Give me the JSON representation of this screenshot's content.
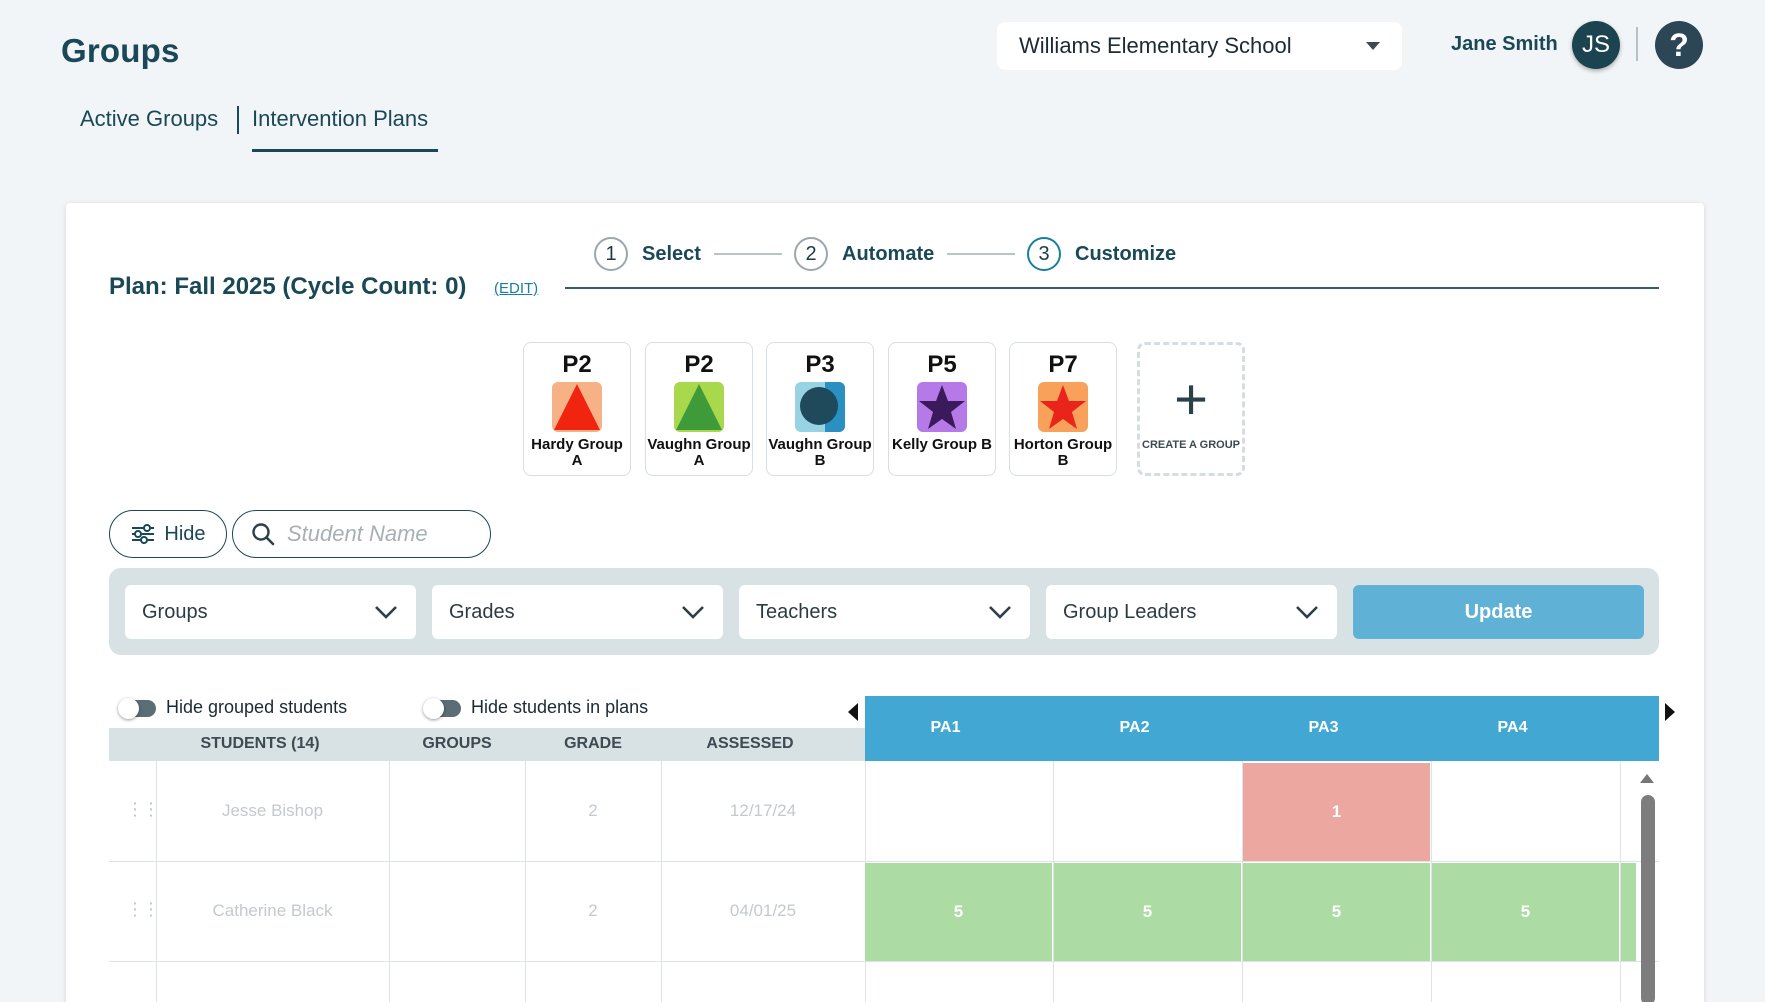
{
  "header": {
    "title": "Groups",
    "school": "Williams Elementary School",
    "user_name": "Jane Smith",
    "user_initials": "JS",
    "help_symbol": "?"
  },
  "tabs": [
    {
      "label": "Active Groups",
      "active": false
    },
    {
      "label": "Intervention Plans",
      "active": true
    }
  ],
  "stepper": [
    {
      "number": "1",
      "label": "Select"
    },
    {
      "number": "2",
      "label": "Automate"
    },
    {
      "number": "3",
      "label": "Customize",
      "active": true
    }
  ],
  "plan": {
    "title": "Plan: Fall 2025 (Cycle Count: 0)",
    "edit_label": "(EDIT)"
  },
  "group_tiles": [
    {
      "code": "P2",
      "name": "Hardy Group A",
      "icon": "red-triangle-icon",
      "bg": "#f7b186",
      "fg": "#f1250f"
    },
    {
      "code": "P2",
      "name": "Vaughn Group A",
      "icon": "green-triangle-icon",
      "bg": "#a8d84c",
      "fg": "#3f9a39"
    },
    {
      "code": "P3",
      "name": "Vaughn Group B",
      "icon": "blue-circle-icon",
      "bg": "#97d3e3",
      "fg": "#1e4a5c"
    },
    {
      "code": "P5",
      "name": "Kelly Group B",
      "icon": "purple-star-icon",
      "bg": "#b57ae8",
      "fg": "#3b1a5c"
    },
    {
      "code": "P7",
      "name": "Horton Group B",
      "icon": "red-star-icon",
      "bg": "#f7a15b",
      "fg": "#e9241a"
    }
  ],
  "create_group_label": "CREATE A GROUP",
  "toolbar": {
    "hide_label": "Hide",
    "search_placeholder": "Student Name"
  },
  "filters": [
    {
      "label": "Groups"
    },
    {
      "label": "Grades"
    },
    {
      "label": "Teachers"
    },
    {
      "label": "Group Leaders"
    }
  ],
  "update_label": "Update",
  "toggles": {
    "hide_grouped": "Hide grouped students",
    "hide_in_plans": "Hide students in plans"
  },
  "table": {
    "columns": {
      "students": "STUDENTS (14)",
      "groups": "GROUPS",
      "grade": "GRADE",
      "assessed": "ASSESSED"
    },
    "pa_columns": [
      "PA1",
      "PA2",
      "PA3",
      "PA4"
    ],
    "rows": [
      {
        "name": "Jesse Bishop",
        "groups": "",
        "grade": "2",
        "assessed": "12/17/24",
        "scores": [
          "",
          "",
          "1",
          ""
        ]
      },
      {
        "name": "Catherine Black",
        "groups": "",
        "grade": "2",
        "assessed": "04/01/25",
        "scores": [
          "5",
          "5",
          "5",
          "5"
        ]
      }
    ]
  },
  "colors": {
    "header_blue": "#42a8d3",
    "score_red": "#eba7a0",
    "score_green": "#acdba3",
    "update_blue": "#5fb1d6"
  }
}
